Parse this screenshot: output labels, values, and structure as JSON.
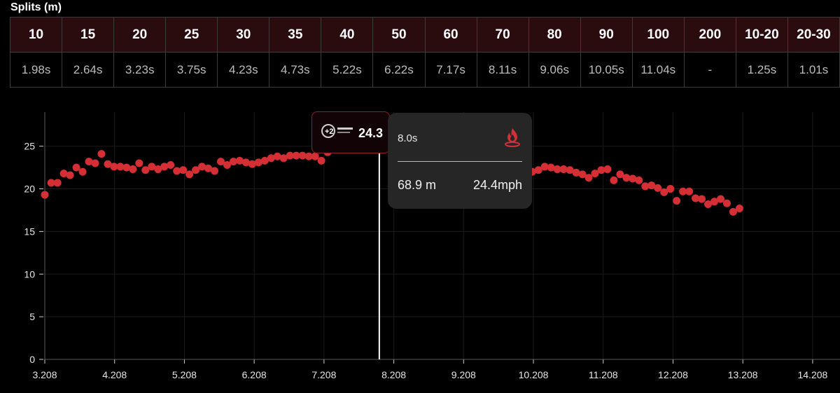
{
  "splits": {
    "title": "Splits (m)",
    "headers": [
      "10",
      "15",
      "20",
      "25",
      "30",
      "35",
      "40",
      "50",
      "60",
      "70",
      "80",
      "90",
      "100",
      "200",
      "10-20",
      "20-30"
    ],
    "values": [
      "1.98s",
      "2.64s",
      "3.23s",
      "3.75s",
      "4.23s",
      "4.73s",
      "5.22s",
      "6.22s",
      "7.17s",
      "8.11s",
      "9.06s",
      "10.05s",
      "11.04s",
      "-",
      "1.25s",
      "1.01s"
    ]
  },
  "tooltip": {
    "time": "8.0s",
    "distance": "68.9 m",
    "speed": "24.4mph",
    "icon": "flame-logo-icon"
  },
  "badge": {
    "value": "24.3",
    "logo_text": "PLUS TWO UNIVERSITY"
  },
  "colors": {
    "accent": "#d42f35",
    "header_bg": "#2a0b0e",
    "tooltip_bg": "#262626"
  },
  "chart_data": {
    "type": "scatter",
    "xlim": [
      3.208,
      14.6
    ],
    "ylim": [
      0,
      29
    ],
    "x_ticks": [
      "3.208",
      "4.208",
      "5.208",
      "6.208",
      "7.208",
      "8.208",
      "9.208",
      "10.208",
      "11.208",
      "12.208",
      "13.208",
      "14.208"
    ],
    "y_ticks": [
      "0",
      "5",
      "10",
      "15",
      "20",
      "25"
    ],
    "cursor_x": 8.0,
    "points": [
      [
        3.208,
        19.3
      ],
      [
        3.3,
        20.7
      ],
      [
        3.39,
        20.7
      ],
      [
        3.48,
        21.8
      ],
      [
        3.57,
        21.6
      ],
      [
        3.66,
        22.5
      ],
      [
        3.75,
        22.0
      ],
      [
        3.84,
        23.2
      ],
      [
        3.93,
        23.0
      ],
      [
        4.02,
        24.1
      ],
      [
        4.11,
        22.9
      ],
      [
        4.2,
        22.6
      ],
      [
        4.29,
        22.6
      ],
      [
        4.38,
        22.5
      ],
      [
        4.47,
        22.3
      ],
      [
        4.56,
        23.0
      ],
      [
        4.65,
        22.2
      ],
      [
        4.74,
        22.6
      ],
      [
        4.83,
        22.3
      ],
      [
        4.92,
        22.6
      ],
      [
        5.01,
        22.8
      ],
      [
        5.1,
        22.1
      ],
      [
        5.19,
        22.2
      ],
      [
        5.28,
        21.7
      ],
      [
        5.37,
        22.2
      ],
      [
        5.46,
        22.6
      ],
      [
        5.55,
        22.4
      ],
      [
        5.64,
        22.1
      ],
      [
        5.73,
        23.2
      ],
      [
        5.82,
        22.8
      ],
      [
        5.91,
        23.2
      ],
      [
        6.0,
        23.3
      ],
      [
        6.09,
        23.1
      ],
      [
        6.18,
        22.9
      ],
      [
        6.27,
        23.1
      ],
      [
        6.36,
        23.3
      ],
      [
        6.45,
        23.6
      ],
      [
        6.54,
        23.8
      ],
      [
        6.63,
        23.6
      ],
      [
        6.72,
        23.9
      ],
      [
        6.81,
        23.9
      ],
      [
        6.9,
        23.9
      ],
      [
        6.99,
        23.8
      ],
      [
        7.08,
        23.8
      ],
      [
        7.17,
        23.3
      ],
      [
        7.26,
        24.3
      ],
      [
        9.2,
        22.9
      ],
      [
        9.29,
        22.6
      ],
      [
        9.38,
        22.4
      ],
      [
        9.47,
        22.7
      ],
      [
        9.56,
        23.0
      ],
      [
        9.65,
        22.7
      ],
      [
        9.74,
        23.0
      ],
      [
        9.83,
        22.5
      ],
      [
        9.92,
        22.3
      ],
      [
        10.01,
        22.3
      ],
      [
        10.1,
        22.2
      ],
      [
        10.19,
        22.0
      ],
      [
        10.28,
        22.2
      ],
      [
        10.37,
        22.6
      ],
      [
        10.46,
        22.5
      ],
      [
        10.55,
        22.3
      ],
      [
        10.64,
        22.3
      ],
      [
        10.73,
        22.2
      ],
      [
        10.82,
        21.9
      ],
      [
        10.91,
        21.7
      ],
      [
        11.0,
        21.3
      ],
      [
        11.09,
        21.8
      ],
      [
        11.18,
        22.2
      ],
      [
        11.27,
        22.3
      ],
      [
        11.36,
        21.0
      ],
      [
        11.45,
        21.7
      ],
      [
        11.54,
        21.3
      ],
      [
        11.63,
        21.2
      ],
      [
        11.72,
        21.0
      ],
      [
        11.81,
        20.3
      ],
      [
        11.9,
        20.4
      ],
      [
        11.99,
        20.1
      ],
      [
        12.08,
        19.6
      ],
      [
        12.17,
        20.0
      ],
      [
        12.26,
        18.6
      ],
      [
        12.35,
        19.7
      ],
      [
        12.44,
        19.7
      ],
      [
        12.53,
        18.9
      ],
      [
        12.62,
        18.8
      ],
      [
        12.71,
        18.2
      ],
      [
        12.8,
        18.5
      ],
      [
        12.89,
        18.8
      ],
      [
        12.98,
        18.3
      ],
      [
        13.07,
        17.3
      ],
      [
        13.16,
        17.7
      ]
    ]
  }
}
